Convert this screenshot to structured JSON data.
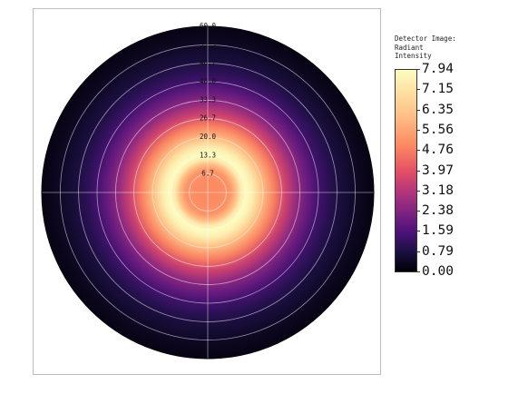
{
  "figure": {
    "colorbar_title_lines": [
      "Detector Image:",
      "Radiant",
      "Intensity"
    ],
    "colorbar_ticks": [
      "7.94",
      "7.15",
      "6.35",
      "5.56",
      "4.76",
      "3.97",
      "3.18",
      "2.38",
      "1.59",
      "0.79",
      "0.00"
    ],
    "radial_labels": [
      "6.7",
      "13.3",
      "20.0",
      "26.7",
      "33.3",
      "40.0",
      "46.7",
      "53.3",
      "60.0"
    ],
    "colormap": "magma"
  },
  "chart_data": {
    "type": "heatmap",
    "projection": "polar",
    "colorbar_title": "Detector Image: Radiant Intensity",
    "value_range": [
      0.0,
      7.94
    ],
    "radial_range": [
      0,
      60
    ],
    "radial_ticks": [
      6.7,
      13.3,
      20.0,
      26.7,
      33.3,
      40.0,
      46.7,
      53.3,
      60.0
    ],
    "radial_profile": {
      "r": [
        0,
        4,
        8,
        10,
        12,
        14,
        16,
        18,
        20,
        24,
        28,
        32,
        36,
        40,
        44,
        48,
        52,
        56,
        60
      ],
      "intensity": [
        5.0,
        5.0,
        5.2,
        6.0,
        7.4,
        7.9,
        7.5,
        6.8,
        6.0,
        4.8,
        3.6,
        2.7,
        2.0,
        1.4,
        1.0,
        0.7,
        0.5,
        0.3,
        0.2
      ]
    },
    "grid": true
  }
}
